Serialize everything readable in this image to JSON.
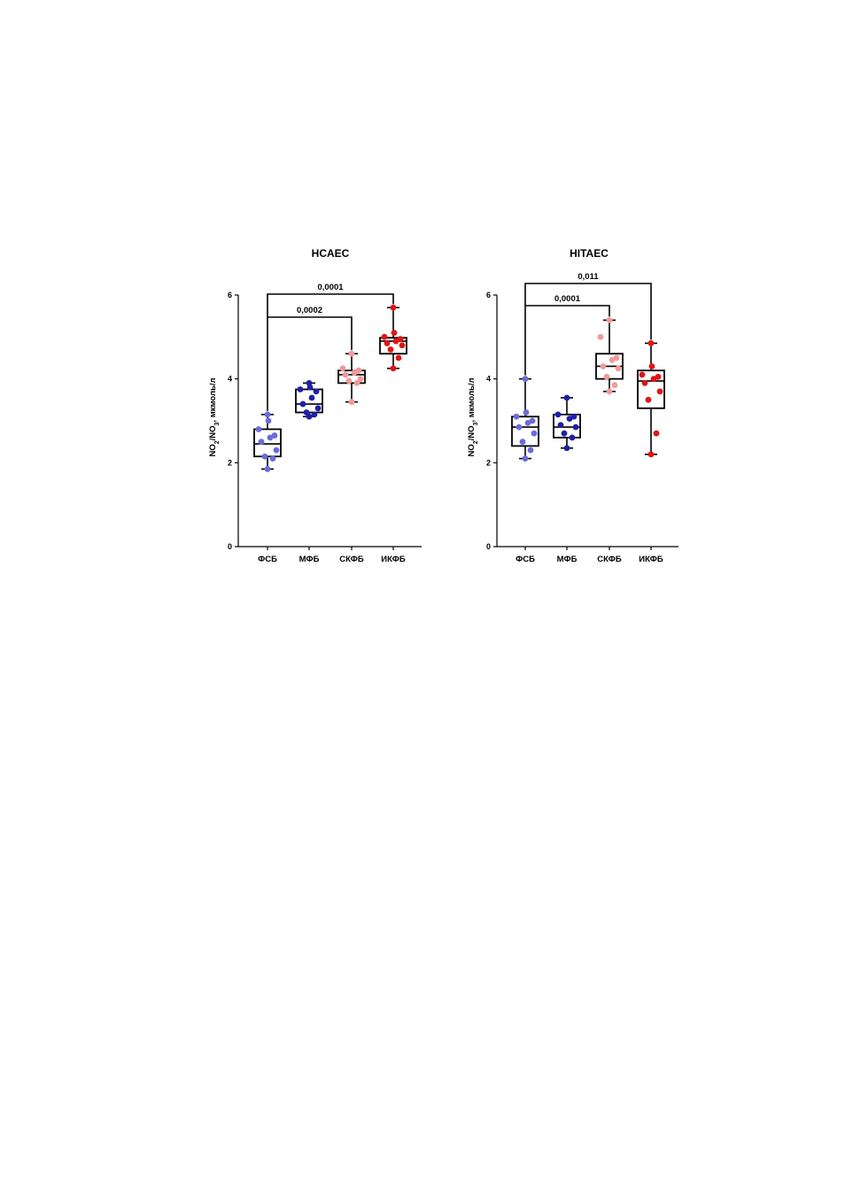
{
  "chart_data": [
    {
      "type": "box",
      "title": "HCAEC",
      "ylabel": {
        "main": "NO",
        "sub1": "2",
        "mid": "/NO",
        "sub2": "3",
        "rest": ", мкмоль/л"
      },
      "ylim": [
        0,
        6
      ],
      "yticks": [
        "0",
        "2",
        "4",
        "6"
      ],
      "categories": [
        "ФСБ",
        "МФБ",
        "СКФБ",
        "ИКФБ"
      ],
      "colors": [
        "#6b6bdc",
        "#1f1fa8",
        "#f09a9a",
        "#e01515"
      ],
      "boxes": [
        {
          "min": 1.85,
          "q1": 2.15,
          "median": 2.45,
          "q3": 2.8,
          "max": 3.15
        },
        {
          "min": 3.1,
          "q1": 3.2,
          "median": 3.4,
          "q3": 3.75,
          "max": 3.9
        },
        {
          "min": 3.45,
          "q1": 3.9,
          "median": 4.1,
          "q3": 4.2,
          "max": 4.6
        },
        {
          "min": 4.25,
          "q1": 4.6,
          "median": 4.9,
          "q3": 4.98,
          "max": 5.7
        }
      ],
      "points": [
        [
          1.85,
          2.1,
          2.15,
          2.3,
          2.5,
          2.6,
          2.65,
          2.8,
          3.0,
          3.15
        ],
        [
          3.1,
          3.15,
          3.2,
          3.3,
          3.4,
          3.55,
          3.7,
          3.75,
          3.8,
          3.9
        ],
        [
          3.45,
          3.9,
          3.95,
          4.0,
          4.1,
          4.15,
          4.2,
          4.25,
          4.6
        ],
        [
          4.25,
          4.5,
          4.7,
          4.8,
          4.85,
          4.9,
          4.95,
          5.0,
          5.1,
          5.7
        ]
      ],
      "comparisons": [
        {
          "from": 0,
          "to": 2,
          "label": "0,0002"
        },
        {
          "from": 0,
          "to": 3,
          "label": "0,0001"
        }
      ]
    },
    {
      "type": "box",
      "title": "HITAEC",
      "ylabel": {
        "main": "NO",
        "sub1": "2",
        "mid": "/NO",
        "sub2": "3",
        "rest": ", мкмоль/л"
      },
      "ylim": [
        0,
        6
      ],
      "yticks": [
        "0",
        "2",
        "4",
        "6"
      ],
      "categories": [
        "ФСБ",
        "МФБ",
        "СКФБ",
        "ИКФБ"
      ],
      "colors": [
        "#6b6bdc",
        "#1f1fa8",
        "#f09a9a",
        "#e01515"
      ],
      "boxes": [
        {
          "min": 2.1,
          "q1": 2.4,
          "median": 2.85,
          "q3": 3.1,
          "max": 4.0
        },
        {
          "min": 2.35,
          "q1": 2.6,
          "median": 2.85,
          "q3": 3.15,
          "max": 3.55
        },
        {
          "min": 3.7,
          "q1": 4.0,
          "median": 4.3,
          "q3": 4.6,
          "max": 5.4
        },
        {
          "min": 2.2,
          "q1": 3.3,
          "median": 3.95,
          "q3": 4.2,
          "max": 4.85
        }
      ],
      "points": [
        [
          2.1,
          2.3,
          2.5,
          2.7,
          2.85,
          2.95,
          3.0,
          3.1,
          3.2,
          4.0
        ],
        [
          2.35,
          2.6,
          2.7,
          2.85,
          2.9,
          3.05,
          3.1,
          3.15,
          3.55
        ],
        [
          3.7,
          3.85,
          4.05,
          4.25,
          4.3,
          4.45,
          4.5,
          5.0,
          5.4
        ],
        [
          2.2,
          2.7,
          3.5,
          3.7,
          3.9,
          4.0,
          4.05,
          4.1,
          4.3,
          4.85
        ]
      ],
      "comparisons": [
        {
          "from": 0,
          "to": 2,
          "label": "0,0001"
        },
        {
          "from": 0,
          "to": 3,
          "label": "0,011"
        }
      ]
    }
  ]
}
